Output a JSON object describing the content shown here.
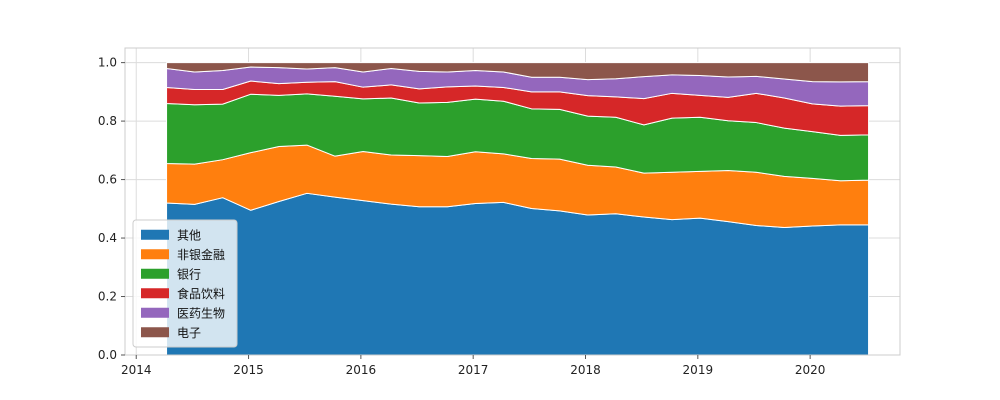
{
  "chart_data": {
    "type": "area",
    "stacked": true,
    "x": [
      2014.27,
      2014.52,
      2014.77,
      2015.02,
      2015.27,
      2015.52,
      2015.77,
      2016.02,
      2016.27,
      2016.52,
      2016.77,
      2017.02,
      2017.27,
      2017.52,
      2017.77,
      2018.02,
      2018.27,
      2018.52,
      2018.77,
      2019.02,
      2019.27,
      2019.52,
      2019.77,
      2020.02,
      2020.27,
      2020.52
    ],
    "series": [
      {
        "name": "其他",
        "color": "#1f77b4",
        "values": [
          0.52,
          0.515,
          0.538,
          0.495,
          0.525,
          0.553,
          0.54,
          0.528,
          0.516,
          0.507,
          0.507,
          0.518,
          0.522,
          0.501,
          0.493,
          0.479,
          0.483,
          0.472,
          0.463,
          0.468,
          0.456,
          0.443,
          0.436,
          0.441,
          0.445,
          0.445
        ]
      },
      {
        "name": "非银金融",
        "color": "#ff7f0e",
        "values": [
          0.135,
          0.138,
          0.13,
          0.197,
          0.188,
          0.165,
          0.14,
          0.168,
          0.168,
          0.175,
          0.172,
          0.177,
          0.166,
          0.171,
          0.177,
          0.17,
          0.16,
          0.15,
          0.162,
          0.16,
          0.175,
          0.182,
          0.175,
          0.163,
          0.151,
          0.153
        ]
      },
      {
        "name": "银行",
        "color": "#2ca02c",
        "values": [
          0.205,
          0.203,
          0.19,
          0.2,
          0.175,
          0.175,
          0.205,
          0.18,
          0.195,
          0.18,
          0.185,
          0.18,
          0.18,
          0.17,
          0.17,
          0.168,
          0.17,
          0.165,
          0.185,
          0.185,
          0.17,
          0.17,
          0.165,
          0.16,
          0.155,
          0.155
        ]
      },
      {
        "name": "食品饮料",
        "color": "#d62728",
        "values": [
          0.055,
          0.052,
          0.05,
          0.045,
          0.04,
          0.04,
          0.05,
          0.04,
          0.045,
          0.048,
          0.053,
          0.045,
          0.047,
          0.058,
          0.06,
          0.07,
          0.07,
          0.09,
          0.085,
          0.075,
          0.08,
          0.1,
          0.103,
          0.095,
          0.1,
          0.1
        ]
      },
      {
        "name": "医药生物",
        "color": "#9467bd",
        "values": [
          0.065,
          0.06,
          0.065,
          0.048,
          0.055,
          0.045,
          0.048,
          0.052,
          0.056,
          0.06,
          0.051,
          0.053,
          0.053,
          0.05,
          0.05,
          0.055,
          0.062,
          0.075,
          0.063,
          0.068,
          0.07,
          0.058,
          0.065,
          0.076,
          0.083,
          0.082
        ]
      },
      {
        "name": "电子",
        "color": "#8c564b",
        "values": [
          0.02,
          0.032,
          0.027,
          0.015,
          0.017,
          0.022,
          0.017,
          0.032,
          0.02,
          0.03,
          0.032,
          0.027,
          0.032,
          0.05,
          0.05,
          0.058,
          0.055,
          0.048,
          0.042,
          0.044,
          0.049,
          0.047,
          0.056,
          0.065,
          0.066,
          0.065
        ]
      }
    ],
    "xlim": [
      2013.9,
      2020.8
    ],
    "ylim": [
      0,
      1.05
    ],
    "xticks": [
      2014,
      2015,
      2016,
      2017,
      2018,
      2019,
      2020
    ],
    "xtick_labels": [
      "2014",
      "2015",
      "2016",
      "2017",
      "2018",
      "2019",
      "2020"
    ],
    "yticks": [
      0,
      0.2,
      0.4,
      0.6,
      0.8,
      1.0
    ],
    "ytick_labels": [
      "0.0",
      "0.2",
      "0.4",
      "0.6",
      "0.8",
      "1.0"
    ],
    "grid": true,
    "legend_position": "lower-left"
  }
}
